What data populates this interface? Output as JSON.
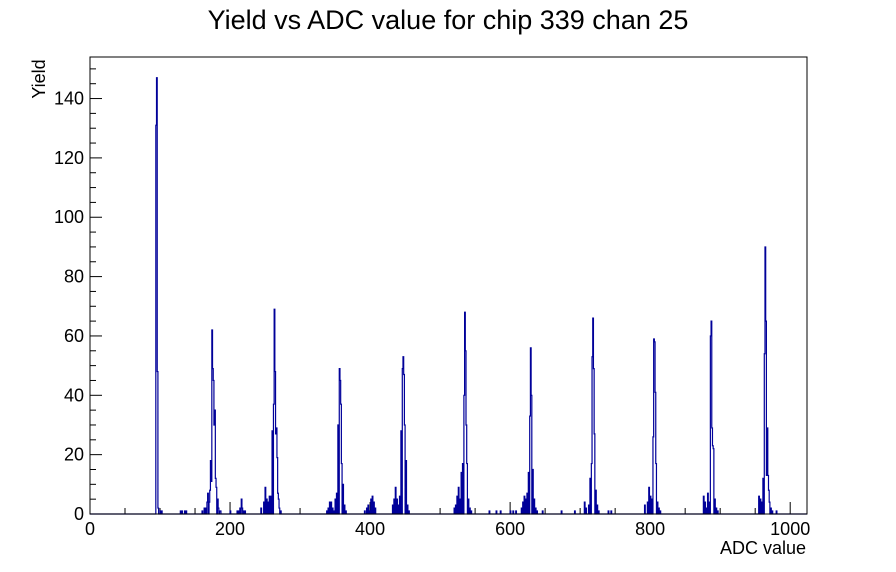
{
  "chart_data": {
    "type": "bar",
    "title": "Yield vs ADC value for chip 339 chan 25",
    "xlabel": "ADC value",
    "ylabel": "Yield",
    "xlim": [
      0,
      1024
    ],
    "ylim": [
      0,
      154
    ],
    "x_ticks": [
      "0",
      "200",
      "400",
      "600",
      "800",
      "1000"
    ],
    "y_ticks": [
      "0",
      "20",
      "40",
      "60",
      "80",
      "100",
      "120",
      "140"
    ],
    "line_color": "#000099",
    "series": [
      {
        "bins": [
          [
            94,
            131
          ],
          [
            95,
            147
          ],
          [
            96,
            48
          ],
          [
            97,
            2
          ],
          [
            100,
            1
          ],
          [
            102,
            1
          ],
          [
            129,
            1
          ],
          [
            131,
            1
          ],
          [
            135,
            1
          ],
          [
            137,
            1
          ],
          [
            160,
            1
          ],
          [
            163,
            2
          ],
          [
            165,
            2
          ],
          [
            167,
            4
          ],
          [
            168,
            7
          ],
          [
            170,
            4
          ],
          [
            171,
            8
          ],
          [
            172,
            18
          ],
          [
            173,
            11
          ],
          [
            174,
            62
          ],
          [
            175,
            49
          ],
          [
            176,
            45
          ],
          [
            177,
            30
          ],
          [
            178,
            35
          ],
          [
            179,
            12
          ],
          [
            180,
            9
          ],
          [
            182,
            5
          ],
          [
            183,
            2
          ],
          [
            185,
            1
          ],
          [
            186,
            1
          ],
          [
            200,
            1
          ],
          [
            210,
            1
          ],
          [
            212,
            1
          ],
          [
            214,
            2
          ],
          [
            216,
            5
          ],
          [
            217,
            2
          ],
          [
            219,
            1
          ],
          [
            221,
            1
          ],
          [
            244,
            2
          ],
          [
            248,
            4
          ],
          [
            250,
            9
          ],
          [
            252,
            5
          ],
          [
            254,
            4
          ],
          [
            256,
            6
          ],
          [
            258,
            6
          ],
          [
            260,
            28
          ],
          [
            262,
            37
          ],
          [
            263,
            69
          ],
          [
            264,
            48
          ],
          [
            265,
            27
          ],
          [
            266,
            29
          ],
          [
            267,
            19
          ],
          [
            268,
            7
          ],
          [
            269,
            5
          ],
          [
            270,
            2
          ],
          [
            272,
            1
          ],
          [
            338,
            1
          ],
          [
            340,
            2
          ],
          [
            342,
            4
          ],
          [
            344,
            4
          ],
          [
            346,
            2
          ],
          [
            348,
            1
          ],
          [
            350,
            5
          ],
          [
            352,
            7
          ],
          [
            354,
            30
          ],
          [
            356,
            49
          ],
          [
            357,
            45
          ],
          [
            358,
            37
          ],
          [
            359,
            17
          ],
          [
            361,
            10
          ],
          [
            363,
            3
          ],
          [
            365,
            1
          ],
          [
            392,
            1
          ],
          [
            395,
            2
          ],
          [
            397,
            3
          ],
          [
            399,
            1
          ],
          [
            401,
            5
          ],
          [
            403,
            6
          ],
          [
            405,
            4
          ],
          [
            407,
            2
          ],
          [
            432,
            3
          ],
          [
            434,
            5
          ],
          [
            436,
            9
          ],
          [
            438,
            5
          ],
          [
            440,
            3
          ],
          [
            442,
            6
          ],
          [
            444,
            28
          ],
          [
            446,
            49
          ],
          [
            447,
            53
          ],
          [
            448,
            47
          ],
          [
            449,
            30
          ],
          [
            451,
            18
          ],
          [
            453,
            3
          ],
          [
            455,
            1
          ],
          [
            520,
            2
          ],
          [
            522,
            3
          ],
          [
            524,
            6
          ],
          [
            526,
            9
          ],
          [
            528,
            5
          ],
          [
            530,
            14
          ],
          [
            532,
            17
          ],
          [
            534,
            40
          ],
          [
            535,
            68
          ],
          [
            536,
            55
          ],
          [
            537,
            30
          ],
          [
            538,
            17
          ],
          [
            540,
            5
          ],
          [
            542,
            2
          ],
          [
            544,
            1
          ],
          [
            570,
            1
          ],
          [
            580,
            1
          ],
          [
            586,
            1
          ],
          [
            600,
            1
          ],
          [
            604,
            1
          ],
          [
            608,
            1
          ],
          [
            616,
            2
          ],
          [
            618,
            4
          ],
          [
            620,
            6
          ],
          [
            622,
            5
          ],
          [
            624,
            7
          ],
          [
            626,
            14
          ],
          [
            628,
            33
          ],
          [
            629,
            56
          ],
          [
            630,
            40
          ],
          [
            632,
            15
          ],
          [
            634,
            5
          ],
          [
            636,
            2
          ],
          [
            638,
            1
          ],
          [
            646,
            1
          ],
          [
            673,
            1
          ],
          [
            692,
            1
          ],
          [
            706,
            4
          ],
          [
            708,
            2
          ],
          [
            712,
            3
          ],
          [
            714,
            12
          ],
          [
            716,
            17
          ],
          [
            717,
            53
          ],
          [
            718,
            66
          ],
          [
            719,
            49
          ],
          [
            720,
            27
          ],
          [
            722,
            8
          ],
          [
            724,
            3
          ],
          [
            726,
            1
          ],
          [
            740,
            1
          ],
          [
            744,
            1
          ],
          [
            792,
            3
          ],
          [
            796,
            4
          ],
          [
            798,
            9
          ],
          [
            800,
            6
          ],
          [
            802,
            5
          ],
          [
            804,
            26
          ],
          [
            805,
            59
          ],
          [
            806,
            58
          ],
          [
            807,
            41
          ],
          [
            808,
            17
          ],
          [
            810,
            4
          ],
          [
            812,
            2
          ],
          [
            814,
            1
          ],
          [
            876,
            6
          ],
          [
            878,
            4
          ],
          [
            880,
            2
          ],
          [
            882,
            7
          ],
          [
            884,
            4
          ],
          [
            886,
            60
          ],
          [
            887,
            65
          ],
          [
            888,
            29
          ],
          [
            889,
            23
          ],
          [
            890,
            22
          ],
          [
            892,
            5
          ],
          [
            894,
            2
          ],
          [
            896,
            1
          ],
          [
            955,
            6
          ],
          [
            957,
            5
          ],
          [
            959,
            4
          ],
          [
            961,
            12
          ],
          [
            963,
            54
          ],
          [
            964,
            90
          ],
          [
            965,
            65
          ],
          [
            966,
            13
          ],
          [
            967,
            29
          ],
          [
            968,
            13
          ],
          [
            969,
            8
          ],
          [
            970,
            4
          ],
          [
            972,
            2
          ],
          [
            974,
            1
          ],
          [
            980,
            1
          ]
        ]
      }
    ]
  }
}
